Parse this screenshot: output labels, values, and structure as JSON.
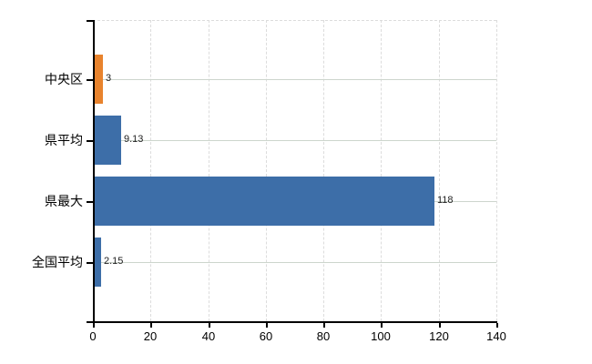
{
  "chart_data": {
    "type": "bar",
    "orientation": "horizontal",
    "title": "",
    "categories": [
      "中央区",
      "県平均",
      "県最大",
      "全国平均"
    ],
    "values": [
      3,
      9.13,
      118,
      2.15
    ],
    "value_labels": [
      "3",
      "9.13",
      "118",
      "2.15"
    ],
    "bar_colors": [
      "#e8832d",
      "#3d6ea8",
      "#3d6ea8",
      "#3d6ea8"
    ],
    "xlim": [
      0,
      140
    ],
    "xticks": [
      0,
      20,
      40,
      60,
      80,
      100,
      120,
      140
    ],
    "xtick_labels": [
      "0",
      "20",
      "40",
      "60",
      "80",
      "100",
      "120",
      "140"
    ],
    "grid": true,
    "legend_position": "none",
    "xlabel": "",
    "ylabel": ""
  },
  "colors": {
    "background": "#ffffff",
    "axis": "#000000",
    "grid_horizontal": "#cdd5cd",
    "grid_vertical": "#dcdcdc",
    "accent_orange": "#e8832d",
    "accent_blue": "#3d6ea8",
    "label_text": "#000000",
    "value_text": "#222222"
  }
}
